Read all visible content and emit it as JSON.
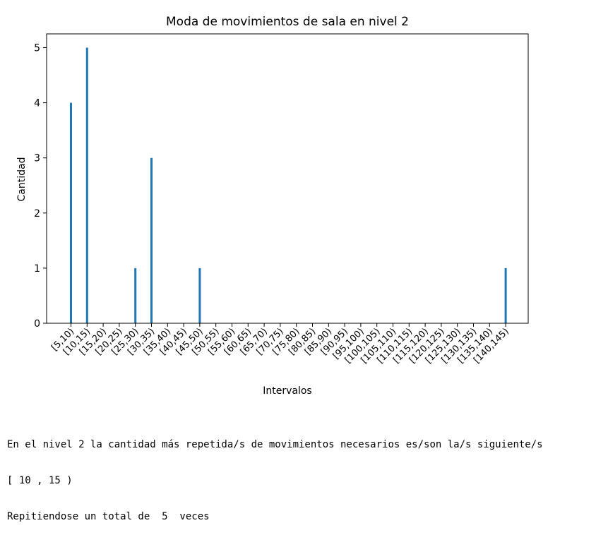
{
  "chart_data": {
    "type": "bar",
    "title": "Moda de movimientos de sala en nivel 2",
    "xlabel": "Intervalos",
    "ylabel": "Cantidad",
    "categories": [
      "[5,10)",
      "[10,15)",
      "[15,20)",
      "[20,25)",
      "[25,30)",
      "[30,35)",
      "[35,40)",
      "[40,45)",
      "[45,50)",
      "[50,55)",
      "[55,60)",
      "[60,65)",
      "[65,70)",
      "[70,75)",
      "[75,80)",
      "[80,85)",
      "[85,90)",
      "[90,95)",
      "[95,100)",
      "[100,105)",
      "[105,110)",
      "[110,115)",
      "[115,120)",
      "[120,125)",
      "[125,130)",
      "[130,135)",
      "[135,140)",
      "[140,145)"
    ],
    "values": [
      4,
      5,
      0,
      0,
      1,
      3,
      0,
      0,
      1,
      0,
      0,
      0,
      0,
      0,
      0,
      0,
      0,
      0,
      0,
      0,
      0,
      0,
      0,
      0,
      0,
      0,
      0,
      1
    ],
    "ylim": [
      0,
      5.25
    ],
    "yticks": [
      0,
      1,
      2,
      3,
      4,
      5
    ],
    "bar_color": "#1f77b4",
    "grid": false,
    "legend": "none"
  },
  "output": {
    "line1": "En el nivel 2 la cantidad más repetida/s de movimientos necesarios es/son la/s siguiente/s",
    "line2": "[ 10 , 15 )",
    "line3": "Repitiendose un total de  5  veces"
  }
}
